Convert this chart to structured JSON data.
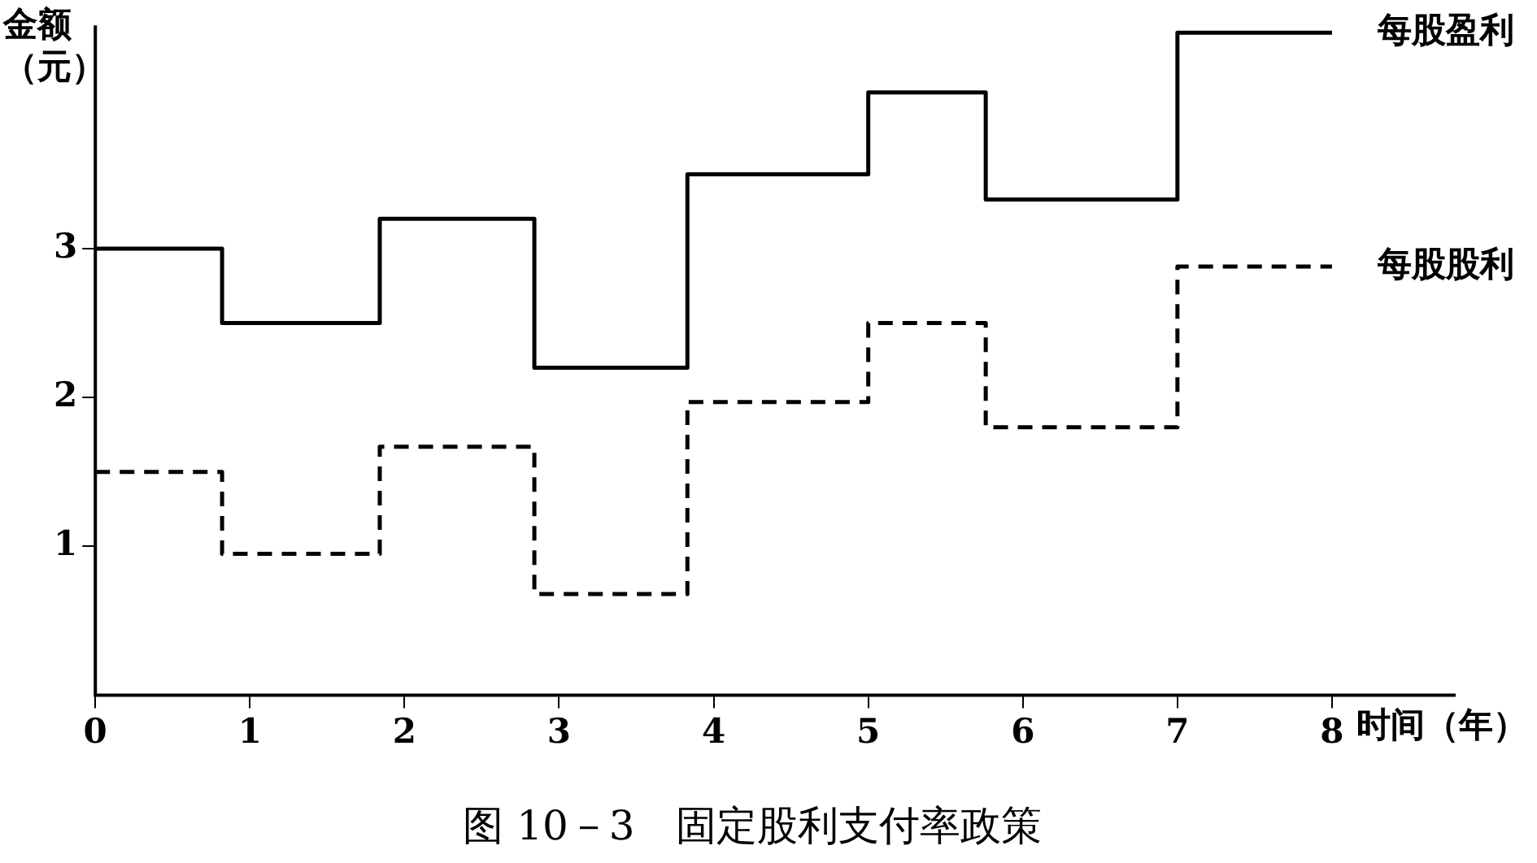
{
  "chart_data": {
    "type": "step",
    "title": "图 10－3　固定股利支付率政策",
    "xlabel": "时间（年）",
    "ylabel": "金额（元）",
    "x": [
      0,
      0.82,
      1.84,
      2.84,
      3.83,
      5.0,
      5.76,
      7.0,
      8.0
    ],
    "series": [
      {
        "name": "每股盈利",
        "color": "#000000",
        "line_style": "solid",
        "values": [
          3.0,
          2.5,
          3.2,
          2.2,
          3.5,
          4.05,
          3.33,
          4.45,
          4.45
        ]
      },
      {
        "name": "每股股利",
        "color": "#000000",
        "line_style": "dashed",
        "values": [
          1.5,
          0.95,
          1.67,
          0.68,
          1.97,
          2.5,
          1.8,
          2.88,
          2.88
        ]
      }
    ],
    "xlim": [
      0,
      8.8
    ],
    "ylim": [
      0,
      4.5
    ],
    "xticks": [
      0,
      1,
      2,
      3,
      4,
      5,
      6,
      7,
      8
    ],
    "yticks": [
      1,
      2,
      3
    ],
    "grid": false,
    "legend": false,
    "marker": "none"
  }
}
